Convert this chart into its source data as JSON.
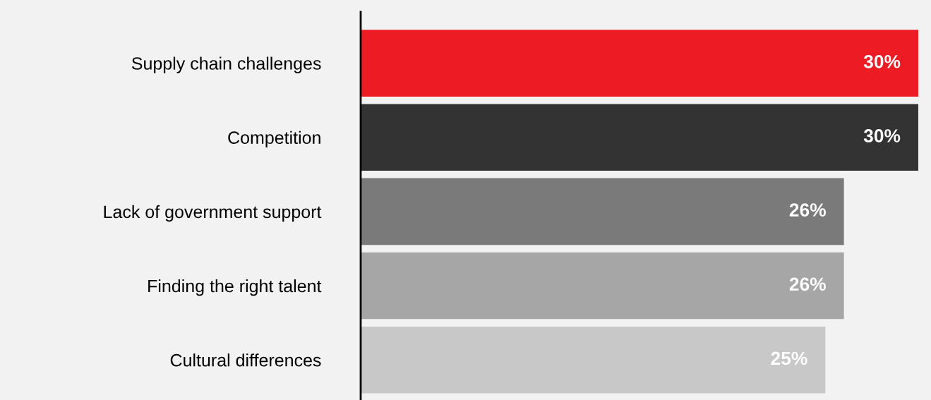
{
  "chart_data": {
    "type": "bar",
    "orientation": "horizontal",
    "categories": [
      "Supply chain challenges",
      "Competition",
      "Lack of government support",
      "Finding the right talent",
      "Cultural differences"
    ],
    "values": [
      30,
      30,
      26,
      26,
      25
    ],
    "colors": [
      "#ed1c24",
      "#333333",
      "#7a7a7a",
      "#a6a6a6",
      "#c8c8c8"
    ],
    "value_labels": [
      "30%",
      "30%",
      "26%",
      "26%",
      "25%"
    ],
    "grid": false,
    "legend": false,
    "tick_labels": "y"
  }
}
